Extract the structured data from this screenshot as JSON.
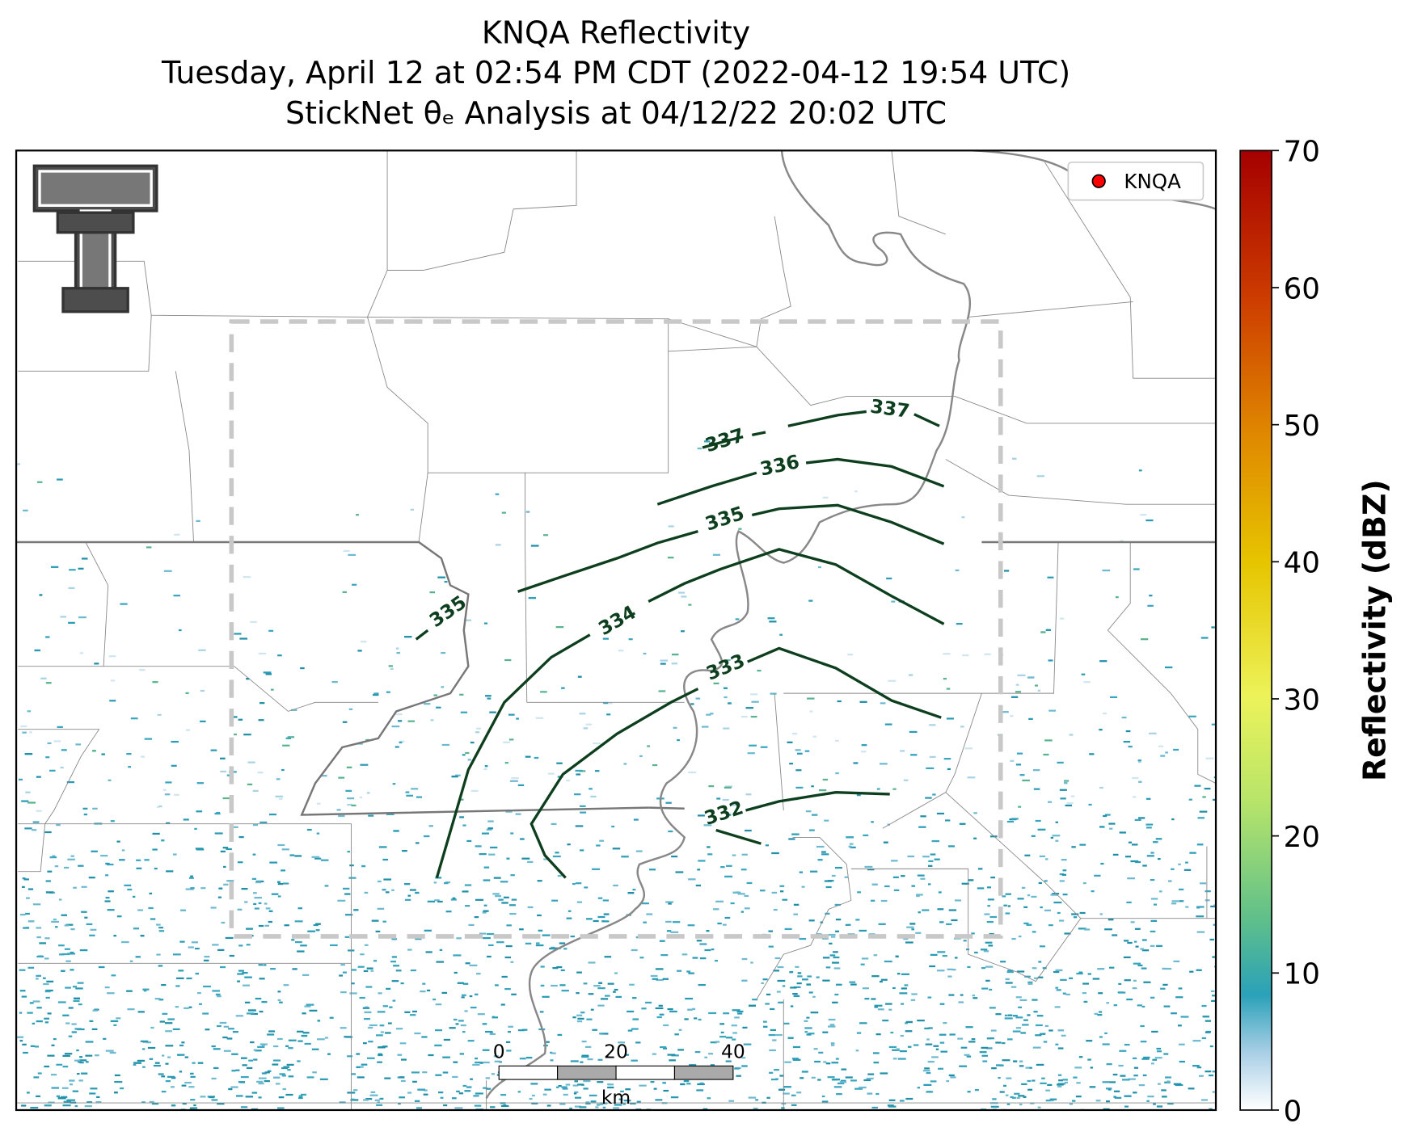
{
  "header": {
    "title_lines": [
      "KNQA Reflectivity",
      "Tuesday, April 12 at 02:54 PM CDT (2022-04-12 19:54 UTC)",
      "StickNet θₑ Analysis at 04/12/22 20:02 UTC"
    ]
  },
  "legend": {
    "label": "KNQA",
    "color": "#ff0000"
  },
  "contours": [
    {
      "label": "337"
    },
    {
      "label": "337"
    },
    {
      "label": "336"
    },
    {
      "label": "335"
    },
    {
      "label": "335"
    },
    {
      "label": "334"
    },
    {
      "label": "333"
    },
    {
      "label": "332"
    }
  ],
  "scale_bar": {
    "ticks": [
      "0",
      "20",
      "40"
    ],
    "unit": "km"
  },
  "colorbar": {
    "label": "Reflectivity (dBZ)",
    "lim": [
      0,
      70
    ],
    "ticks": [
      0,
      10,
      20,
      30,
      40,
      50,
      60,
      70
    ]
  }
}
